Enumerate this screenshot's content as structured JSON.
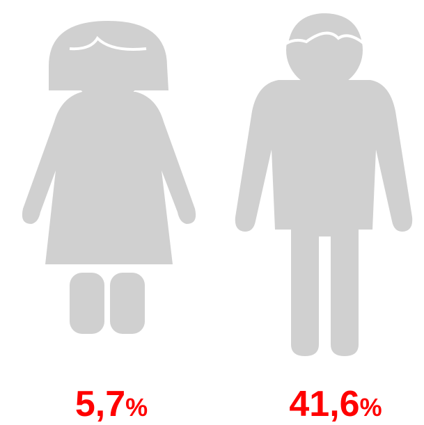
{
  "figures": [
    {
      "value": "5,7",
      "unit": "%"
    },
    {
      "value": "41,6",
      "unit": "%"
    }
  ]
}
